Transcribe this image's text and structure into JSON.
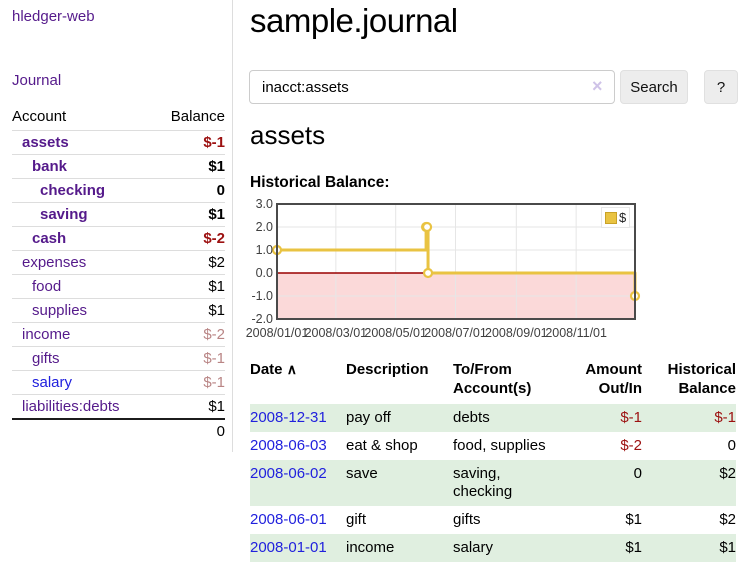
{
  "sidebar": {
    "brand": "hledger-web",
    "nav_journal": "Journal",
    "accounts_table": {
      "headers": [
        "Account",
        "Balance"
      ],
      "rows": [
        {
          "account": "assets",
          "depth": 1,
          "bold": true,
          "link_style": "purple",
          "balance": "$-1",
          "balance_style": "negative-strong"
        },
        {
          "account": "bank",
          "depth": 2,
          "bold": true,
          "link_style": "purple",
          "balance": "$1",
          "balance_style": "normal"
        },
        {
          "account": "checking",
          "depth": 3,
          "bold": true,
          "link_style": "purple",
          "balance": "0",
          "balance_style": "normal"
        },
        {
          "account": "saving",
          "depth": 3,
          "bold": true,
          "link_style": "purple",
          "balance": "$1",
          "balance_style": "normal"
        },
        {
          "account": "cash",
          "depth": 2,
          "bold": true,
          "link_style": "purple",
          "balance": "$-2",
          "balance_style": "negative-strong"
        },
        {
          "account": "expenses",
          "depth": 1,
          "bold": false,
          "link_style": "purple",
          "balance": "$2",
          "balance_style": "normal"
        },
        {
          "account": "food",
          "depth": 2,
          "bold": false,
          "link_style": "purple",
          "balance": "$1",
          "balance_style": "normal"
        },
        {
          "account": "supplies",
          "depth": 2,
          "bold": false,
          "link_style": "purple",
          "balance": "$1",
          "balance_style": "normal"
        },
        {
          "account": "income",
          "depth": 1,
          "bold": false,
          "link_style": "purple",
          "balance": "$-2",
          "balance_style": "negative-muted"
        },
        {
          "account": "gifts",
          "depth": 2,
          "bold": false,
          "link_style": "purple",
          "balance": "$-1",
          "balance_style": "negative-muted"
        },
        {
          "account": "salary",
          "depth": 2,
          "bold": false,
          "link_style": "blue",
          "balance": "$-1",
          "balance_style": "negative-muted"
        },
        {
          "account": "liabilities:debts",
          "depth": 1,
          "bold": false,
          "link_style": "purple",
          "balance": "$1",
          "balance_style": "normal"
        }
      ],
      "total": "0"
    }
  },
  "header": {
    "title": "sample.journal"
  },
  "search": {
    "value": "inacct:assets",
    "clear_icon": "×",
    "button": "Search",
    "help_button": "?"
  },
  "account_page": {
    "heading": "assets",
    "chart_label": "Historical Balance:"
  },
  "chart_data": {
    "type": "line",
    "title": "Historical Balance:",
    "legend_label": "$",
    "legend_position": "top-right",
    "step": true,
    "series": [
      {
        "name": "$",
        "color": "#e9c342",
        "points": [
          [
            "2008-01-01",
            1
          ],
          [
            "2008-06-01",
            2
          ],
          [
            "2008-06-02",
            2
          ],
          [
            "2008-06-03",
            0
          ],
          [
            "2008-12-31",
            -1
          ]
        ]
      }
    ],
    "epoch": "2008-01-01",
    "xlim_days": [
      0,
      365
    ],
    "ylim": [
      -2,
      3
    ],
    "x_tick_labels": [
      "2008/01/01",
      "2008/03/01",
      "2008/05/01",
      "2008/07/01",
      "2008/09/01",
      "2008/11/01"
    ],
    "x_tick_days": [
      0,
      60,
      121,
      182,
      244,
      305
    ],
    "y_ticks": [
      "3.0",
      "2.0",
      "1.0",
      "0.0",
      "-1.0",
      "-2.0"
    ],
    "y_tick_values": [
      3,
      2,
      1,
      0,
      -1,
      -2
    ],
    "grid_on": true,
    "grid_color": "#e6e6e6",
    "border_color": "#4a4a4a",
    "negative_region_color": "#fbd9d9",
    "zero_line_color": "#990000",
    "marker_fill": "#ffffff"
  },
  "register_table": {
    "headers": {
      "date": "Date",
      "description": "Description",
      "account": "To/From Account(s)",
      "amount": "Amount Out/In",
      "balance": "Historical Balance"
    },
    "sort_icon": "∧",
    "rows": [
      {
        "date": "2008-12-31",
        "description": "pay off",
        "accounts": "debts",
        "amount": "$-1",
        "amount_negative": true,
        "balance": "$-1",
        "balance_negative": true
      },
      {
        "date": "2008-06-03",
        "description": "eat & shop",
        "accounts": "food, supplies",
        "amount": "$-2",
        "amount_negative": true,
        "balance": "0",
        "balance_negative": false
      },
      {
        "date": "2008-06-02",
        "description": "save",
        "accounts": "saving, checking",
        "amount": "0",
        "amount_negative": false,
        "balance": "$2",
        "balance_negative": false
      },
      {
        "date": "2008-06-01",
        "description": "gift",
        "accounts": "gifts",
        "amount": "$1",
        "amount_negative": false,
        "balance": "$2",
        "balance_negative": false
      },
      {
        "date": "2008-01-01",
        "description": "income",
        "accounts": "salary",
        "amount": "$1",
        "amount_negative": false,
        "balance": "$1",
        "balance_negative": false
      }
    ]
  },
  "colors": {
    "link_purple": "#551a8b",
    "link_blue": "#2121dd",
    "negative_strong": "#9c1010",
    "negative_muted": "#b98585",
    "row_stripe_green": "#e0efe0",
    "divider_gray": "#dddddd"
  }
}
